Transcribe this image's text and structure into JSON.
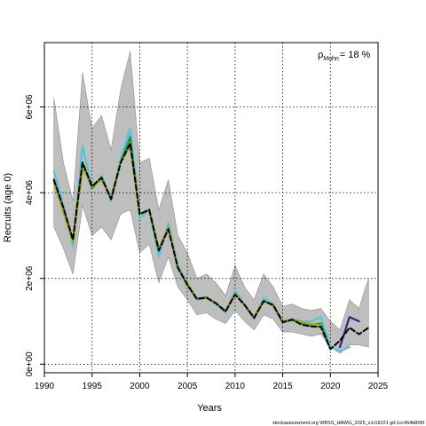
{
  "chart_data": {
    "type": "line",
    "xlabel": "Years",
    "ylabel": "Recruits (age 0)",
    "xlim": [
      1990,
      2025
    ],
    "ylim": [
      -200000,
      7500000
    ],
    "x_ticks": [
      1990,
      1995,
      2000,
      2005,
      2010,
      2015,
      2020,
      2025
    ],
    "y_ticks": [
      0,
      2000000,
      4000000,
      6000000
    ],
    "y_tick_labels": [
      "0e+00",
      "2e+06",
      "4e+06",
      "6e+06"
    ],
    "grid": "dotted at tick positions",
    "annotation": {
      "label": "ρMohn",
      "value": "18 %",
      "placement": "top-right"
    },
    "footer": "stockassessment.org WBSS_HAWG_2025_s1r19221 git:1cc464b806f",
    "band": {
      "color": "#bebebe",
      "x": [
        1991,
        1992,
        1993,
        1994,
        1995,
        1996,
        1997,
        1998,
        1999,
        2000,
        2001,
        2002,
        2003,
        2004,
        2005,
        2006,
        2007,
        2008,
        2009,
        2010,
        2011,
        2012,
        2013,
        2014,
        2015,
        2016,
        2017,
        2018,
        2019,
        2020,
        2021,
        2022,
        2023,
        2024
      ],
      "upper": [
        6200000,
        4700000,
        3800000,
        6800000,
        5500000,
        5800000,
        5000000,
        6400000,
        7300000,
        4700000,
        4800000,
        3600000,
        4300000,
        3000000,
        2600000,
        2000000,
        2100000,
        1900000,
        1600000,
        2300000,
        1800000,
        1500000,
        2100000,
        1800000,
        1350000,
        1400000,
        1300000,
        1250000,
        1300000,
        1000000,
        800000,
        1500000,
        1300000,
        2000000
      ],
      "lower": [
        3200000,
        2700000,
        2100000,
        3700000,
        3000000,
        3200000,
        2900000,
        3500000,
        3600000,
        2600000,
        2800000,
        1900000,
        2500000,
        1800000,
        1500000,
        1150000,
        1200000,
        1050000,
        950000,
        1250000,
        1000000,
        800000,
        1150000,
        1050000,
        750000,
        750000,
        700000,
        650000,
        700000,
        400000,
        250000,
        450000,
        450000,
        400000
      ]
    },
    "series": [
      {
        "color": "#5bc0de",
        "x": [
          1991,
          1992,
          1993,
          1994,
          1995,
          1996,
          1997,
          1998,
          1999,
          2000,
          2001,
          2002,
          2003,
          2004,
          2005,
          2006,
          2007,
          2008,
          2009,
          2010,
          2011,
          2012,
          2013,
          2014,
          2015,
          2016,
          2017,
          2018,
          2019,
          2020,
          2021,
          2022
        ],
        "values": [
          4500000,
          3700000,
          2750000,
          5100000,
          4100000,
          4400000,
          3800000,
          4800000,
          5500000,
          3400000,
          3600000,
          2500000,
          3300000,
          2300000,
          1900000,
          1500000,
          1550000,
          1400000,
          1200000,
          1700000,
          1400000,
          1050000,
          1550000,
          1400000,
          1000000,
          1050000,
          1000000,
          1000000,
          1100000,
          400000,
          300000,
          400000
        ]
      },
      {
        "color": "#1a9641",
        "x": [
          1991,
          1992,
          1993,
          1994,
          1995,
          1996,
          1997,
          1998,
          1999,
          2000,
          2001,
          2002,
          2003,
          2004,
          2005,
          2006,
          2007,
          2008,
          2009,
          2010,
          2011,
          2012,
          2013,
          2014,
          2015,
          2016,
          2017,
          2018,
          2019,
          2020
        ],
        "values": [
          4300000,
          3600000,
          2900000,
          4700000,
          4100000,
          4350000,
          3850000,
          4700000,
          5300000,
          3500000,
          3600000,
          2650000,
          3200000,
          2250000,
          1850000,
          1530000,
          1560000,
          1420000,
          1230000,
          1650000,
          1380000,
          1080000,
          1480000,
          1370000,
          980000,
          1030000,
          960000,
          920000,
          950000,
          350000
        ]
      },
      {
        "color": "#a6a600",
        "x": [
          1991,
          1992,
          1993,
          1994,
          1995,
          1996,
          1997,
          1998,
          1999,
          2000,
          2001,
          2002,
          2003,
          2004,
          2005,
          2006,
          2007,
          2008,
          2009,
          2010,
          2011,
          2012,
          2013,
          2014,
          2015,
          2016,
          2017,
          2018,
          2019
        ],
        "values": [
          4250000,
          3550000,
          2850000,
          4600000,
          4150000,
          4300000,
          3900000,
          4700000,
          5100000,
          3500000,
          3600000,
          2700000,
          3200000,
          2250000,
          1880000,
          1520000,
          1550000,
          1420000,
          1240000,
          1640000,
          1380000,
          1100000,
          1470000,
          1380000,
          1000000,
          1040000,
          980000,
          930000,
          920000
        ]
      },
      {
        "color": "#2d2a7a",
        "x": [
          2021,
          2022,
          2023
        ],
        "values": [
          400000,
          1100000,
          1000000
        ]
      },
      {
        "color": "#000000",
        "x": [
          1991,
          1992,
          1993,
          1994,
          1995,
          1996,
          1997,
          1998,
          1999,
          2000,
          2001,
          2002,
          2003,
          2004,
          2005,
          2006,
          2007,
          2008,
          2009,
          2010,
          2011,
          2012,
          2013,
          2014,
          2015,
          2016,
          2017,
          2018,
          2019,
          2020,
          2021,
          2022,
          2023,
          2024
        ],
        "values": [
          4300000,
          3650000,
          2900000,
          4700000,
          4150000,
          4350000,
          3850000,
          4700000,
          5150000,
          3500000,
          3600000,
          2650000,
          3150000,
          2250000,
          1850000,
          1520000,
          1550000,
          1420000,
          1230000,
          1620000,
          1380000,
          1080000,
          1470000,
          1380000,
          980000,
          1040000,
          920000,
          880000,
          870000,
          350000,
          550000,
          850000,
          700000,
          850000
        ]
      }
    ]
  }
}
